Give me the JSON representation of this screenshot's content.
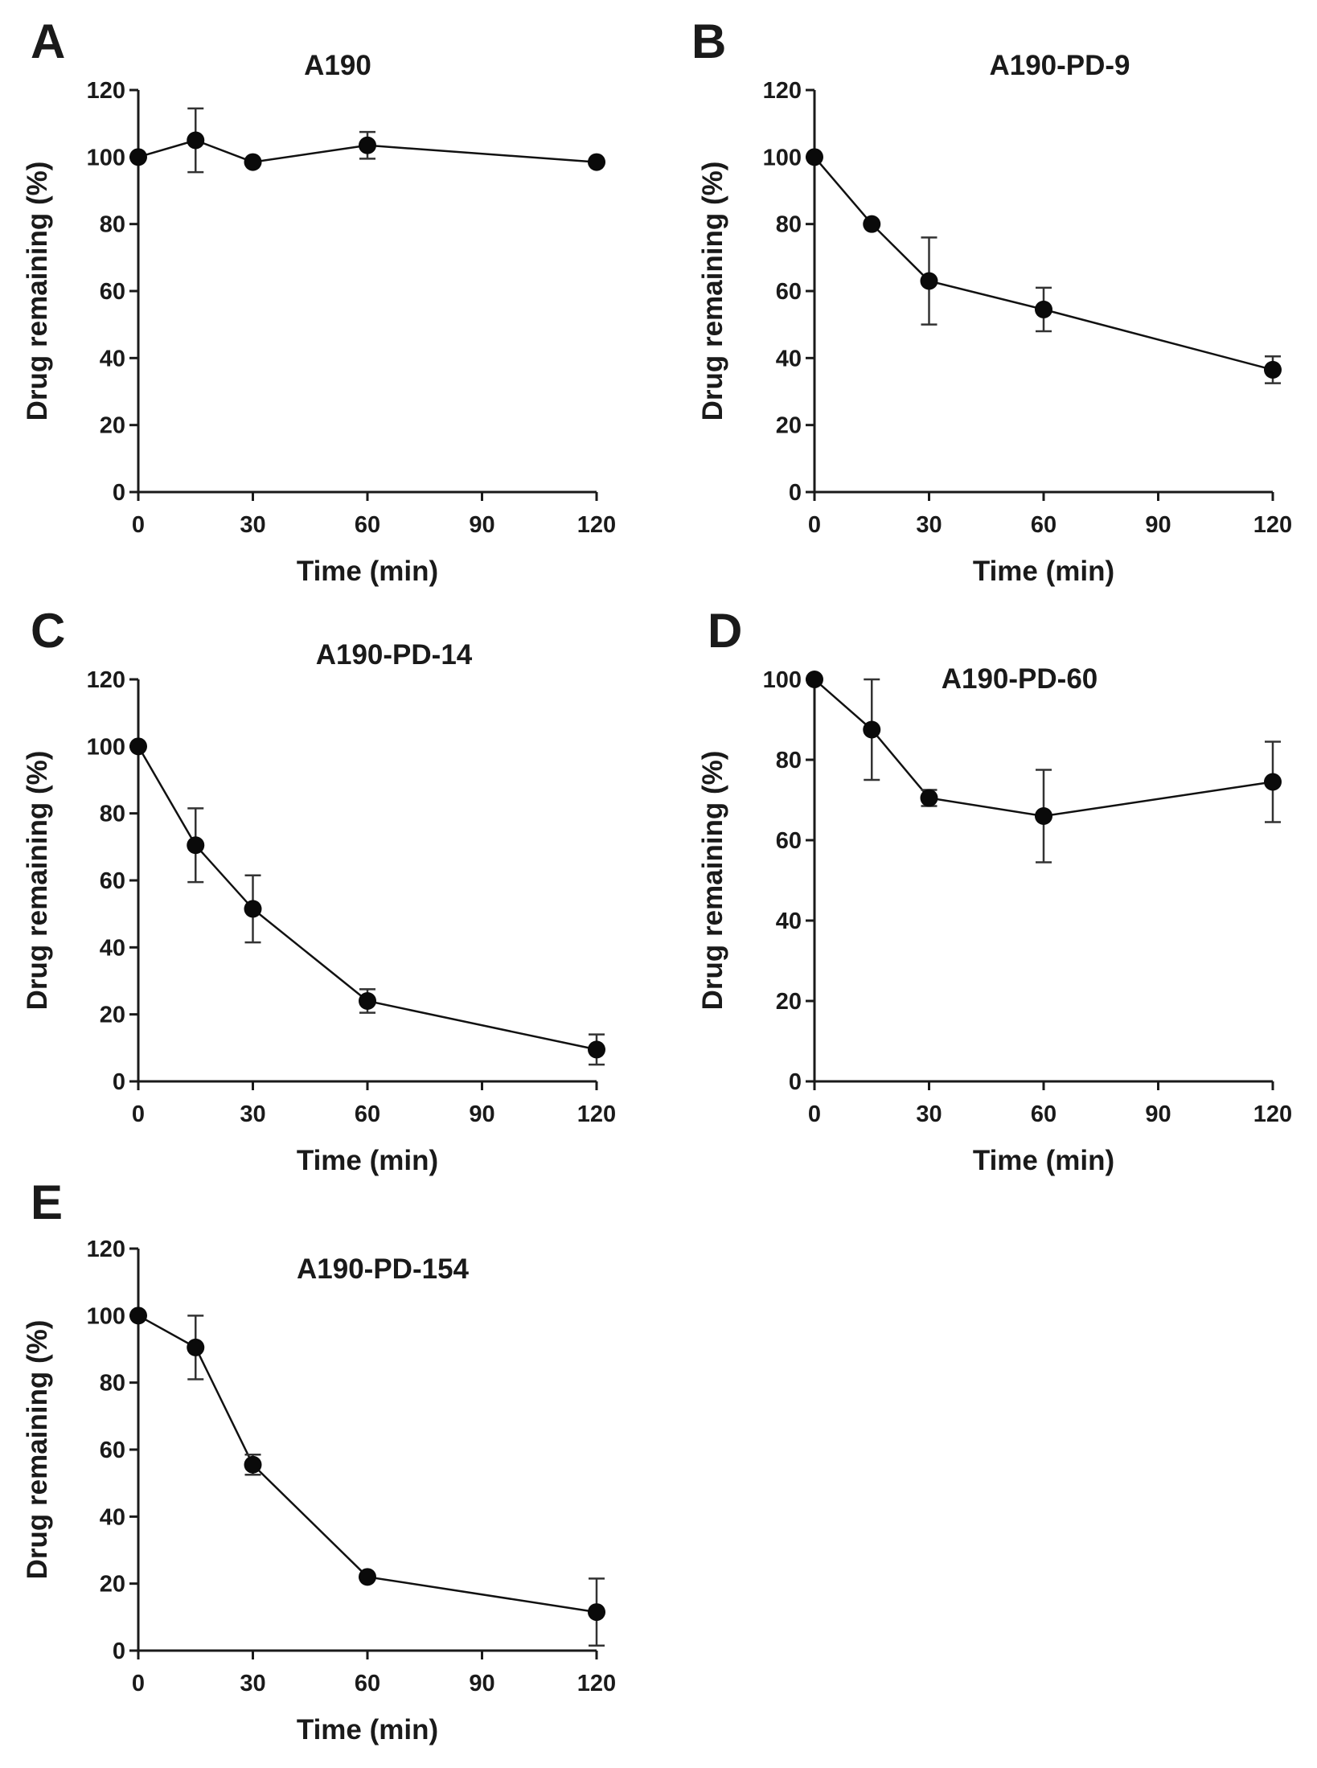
{
  "chart_data": [
    {
      "type": "line",
      "panel": "A",
      "title": "A190",
      "xlabel": "Time (min)",
      "ylabel": "Drug remaining (%)",
      "xlim": [
        0,
        120
      ],
      "ylim": [
        0,
        120
      ],
      "xticks": [
        0,
        30,
        60,
        90,
        120
      ],
      "yticks": [
        0,
        20,
        40,
        60,
        80,
        100,
        120
      ],
      "grid": false,
      "series": [
        {
          "x": [
            0,
            15,
            30,
            60,
            120
          ],
          "y": [
            100,
            105,
            98.5,
            103.5,
            98.5
          ],
          "error": [
            0,
            9.5,
            0,
            4,
            0
          ]
        }
      ]
    },
    {
      "type": "line",
      "panel": "B",
      "title": "A190-PD-9",
      "xlabel": "Time (min)",
      "ylabel": "Drug remaining (%)",
      "xlim": [
        0,
        120
      ],
      "ylim": [
        0,
        120
      ],
      "xticks": [
        0,
        30,
        60,
        90,
        120
      ],
      "yticks": [
        0,
        20,
        40,
        60,
        80,
        100,
        120
      ],
      "grid": false,
      "series": [
        {
          "x": [
            0,
            15,
            30,
            60,
            120
          ],
          "y": [
            100,
            80,
            63,
            54.5,
            36.5
          ],
          "error": [
            0,
            0,
            13,
            6.5,
            4
          ]
        }
      ]
    },
    {
      "type": "line",
      "panel": "C",
      "title": "A190-PD-14",
      "xlabel": "Time (min)",
      "ylabel": "Drug remaining (%)",
      "xlim": [
        0,
        120
      ],
      "ylim": [
        0,
        120
      ],
      "xticks": [
        0,
        30,
        60,
        90,
        120
      ],
      "yticks": [
        0,
        20,
        40,
        60,
        80,
        100,
        120
      ],
      "grid": false,
      "series": [
        {
          "x": [
            0,
            15,
            30,
            60,
            120
          ],
          "y": [
            100,
            70.5,
            51.5,
            24,
            9.5
          ],
          "error": [
            0,
            11,
            10,
            3.5,
            4.5
          ]
        }
      ]
    },
    {
      "type": "line",
      "panel": "D",
      "title": "A190-PD-60",
      "xlabel": "Time (min)",
      "ylabel": "Drug remaining (%)",
      "xlim": [
        0,
        120
      ],
      "ylim": [
        0,
        100
      ],
      "xticks": [
        0,
        30,
        60,
        90,
        120
      ],
      "yticks": [
        0,
        20,
        40,
        60,
        80,
        100
      ],
      "grid": false,
      "series": [
        {
          "x": [
            0,
            15,
            30,
            60,
            120
          ],
          "y": [
            100,
            87.5,
            70.5,
            66,
            74.5
          ],
          "error": [
            0,
            12.5,
            2,
            11.5,
            10
          ]
        }
      ]
    },
    {
      "type": "line",
      "panel": "E",
      "title": "A190-PD-154",
      "xlabel": "Time (min)",
      "ylabel": "Drug remaining (%)",
      "xlim": [
        0,
        120
      ],
      "ylim": [
        0,
        120
      ],
      "xticks": [
        0,
        30,
        60,
        90,
        120
      ],
      "yticks": [
        0,
        20,
        40,
        60,
        80,
        100,
        120
      ],
      "grid": false,
      "series": [
        {
          "x": [
            0,
            15,
            30,
            60,
            120
          ],
          "y": [
            100,
            90.5,
            55.5,
            22,
            11.5
          ],
          "error": [
            0,
            9.5,
            3,
            0,
            10
          ]
        }
      ]
    }
  ]
}
